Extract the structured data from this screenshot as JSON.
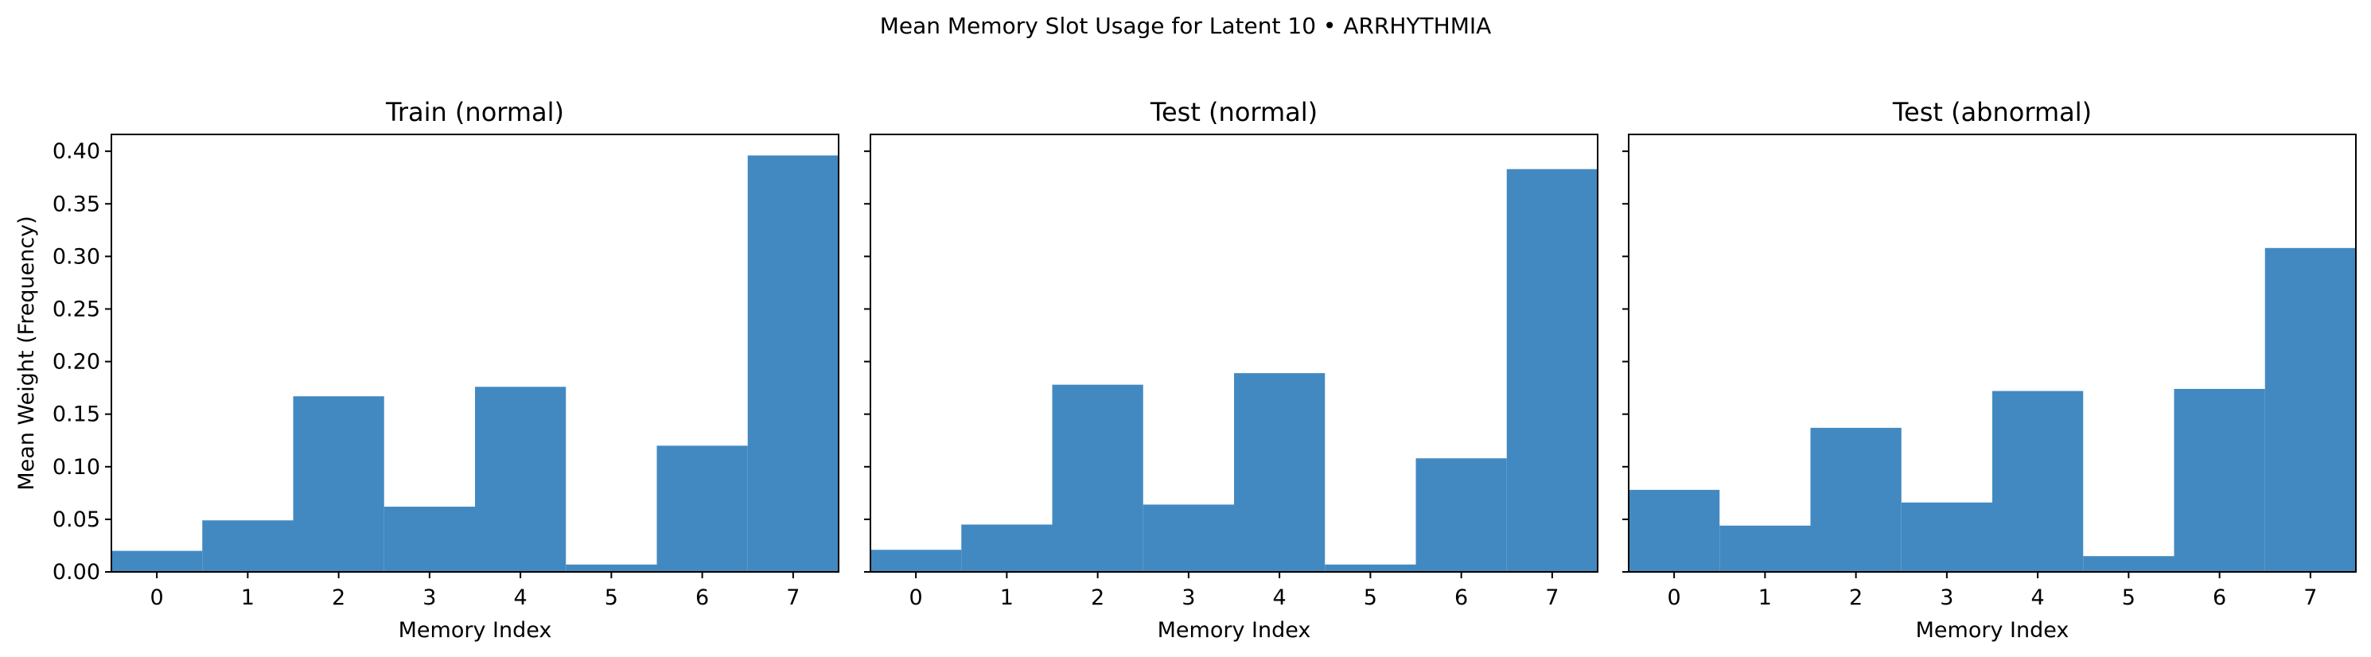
{
  "figure": {
    "suptitle": "Mean Memory Slot Usage for Latent 10 • ARRHYTHMIA",
    "bar_color": "#4289c1"
  },
  "chart_data": [
    {
      "type": "bar",
      "title": "Train (normal)",
      "xlabel": "Memory Index",
      "ylabel": "Mean Weight (Frequency)",
      "categories": [
        "0",
        "1",
        "2",
        "3",
        "4",
        "5",
        "6",
        "7"
      ],
      "values": [
        0.02,
        0.049,
        0.167,
        0.062,
        0.176,
        0.007,
        0.12,
        0.396
      ],
      "ylim": [
        0,
        0.416
      ],
      "yticks": [
        "0.00",
        "0.05",
        "0.10",
        "0.15",
        "0.20",
        "0.25",
        "0.30",
        "0.35",
        "0.40"
      ],
      "grid": false
    },
    {
      "type": "bar",
      "title": "Test (normal)",
      "xlabel": "Memory Index",
      "ylabel": "",
      "categories": [
        "0",
        "1",
        "2",
        "3",
        "4",
        "5",
        "6",
        "7"
      ],
      "values": [
        0.021,
        0.045,
        0.178,
        0.064,
        0.189,
        0.007,
        0.108,
        0.383
      ],
      "ylim": [
        0,
        0.416
      ],
      "yticks": [],
      "grid": false
    },
    {
      "type": "bar",
      "title": "Test (abnormal)",
      "xlabel": "Memory Index",
      "ylabel": "",
      "categories": [
        "0",
        "1",
        "2",
        "3",
        "4",
        "5",
        "6",
        "7"
      ],
      "values": [
        0.078,
        0.044,
        0.137,
        0.066,
        0.172,
        0.015,
        0.174,
        0.308
      ],
      "ylim": [
        0,
        0.416
      ],
      "yticks": [],
      "grid": false
    }
  ]
}
